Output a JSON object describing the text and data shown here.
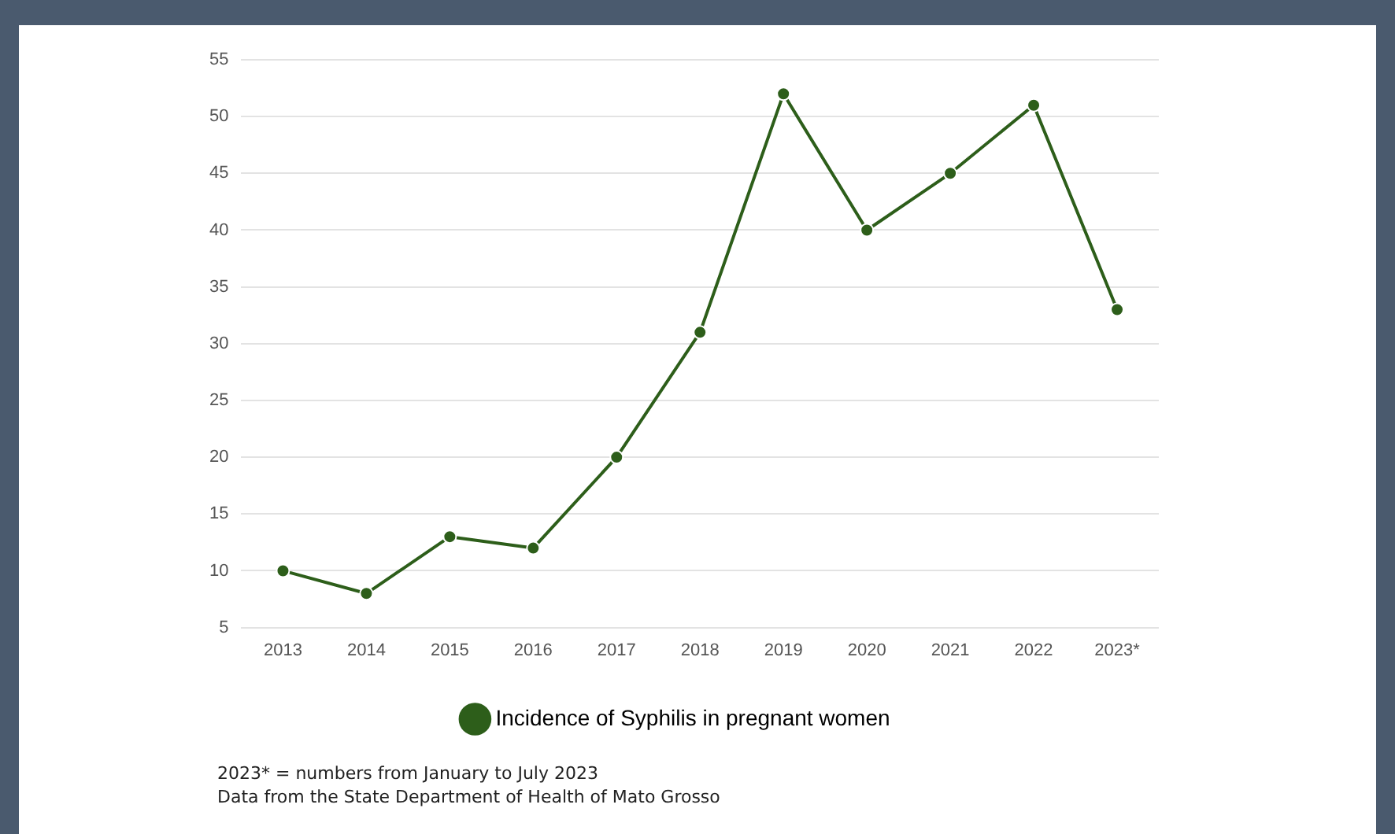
{
  "chart_data": {
    "type": "line",
    "categories": [
      "2013",
      "2014",
      "2015",
      "2016",
      "2017",
      "2018",
      "2019",
      "2020",
      "2021",
      "2022",
      "2023*"
    ],
    "series": [
      {
        "name": "Incidence of Syphilis in pregnant women",
        "color": "#2d5e1a",
        "values": [
          10,
          8,
          13,
          12,
          20,
          31,
          52,
          40,
          45,
          51,
          33
        ]
      }
    ],
    "ylim": [
      5,
      55
    ],
    "yticks": [
      5,
      10,
      15,
      20,
      25,
      30,
      35,
      40,
      45,
      50,
      55
    ],
    "grid": "y",
    "legend": "bottom",
    "marker": "circle",
    "line_style": "solid",
    "annotations": [
      "2023* = numbers from January to July 2023",
      "Data from the State Department of Health of Mato Grosso"
    ]
  }
}
